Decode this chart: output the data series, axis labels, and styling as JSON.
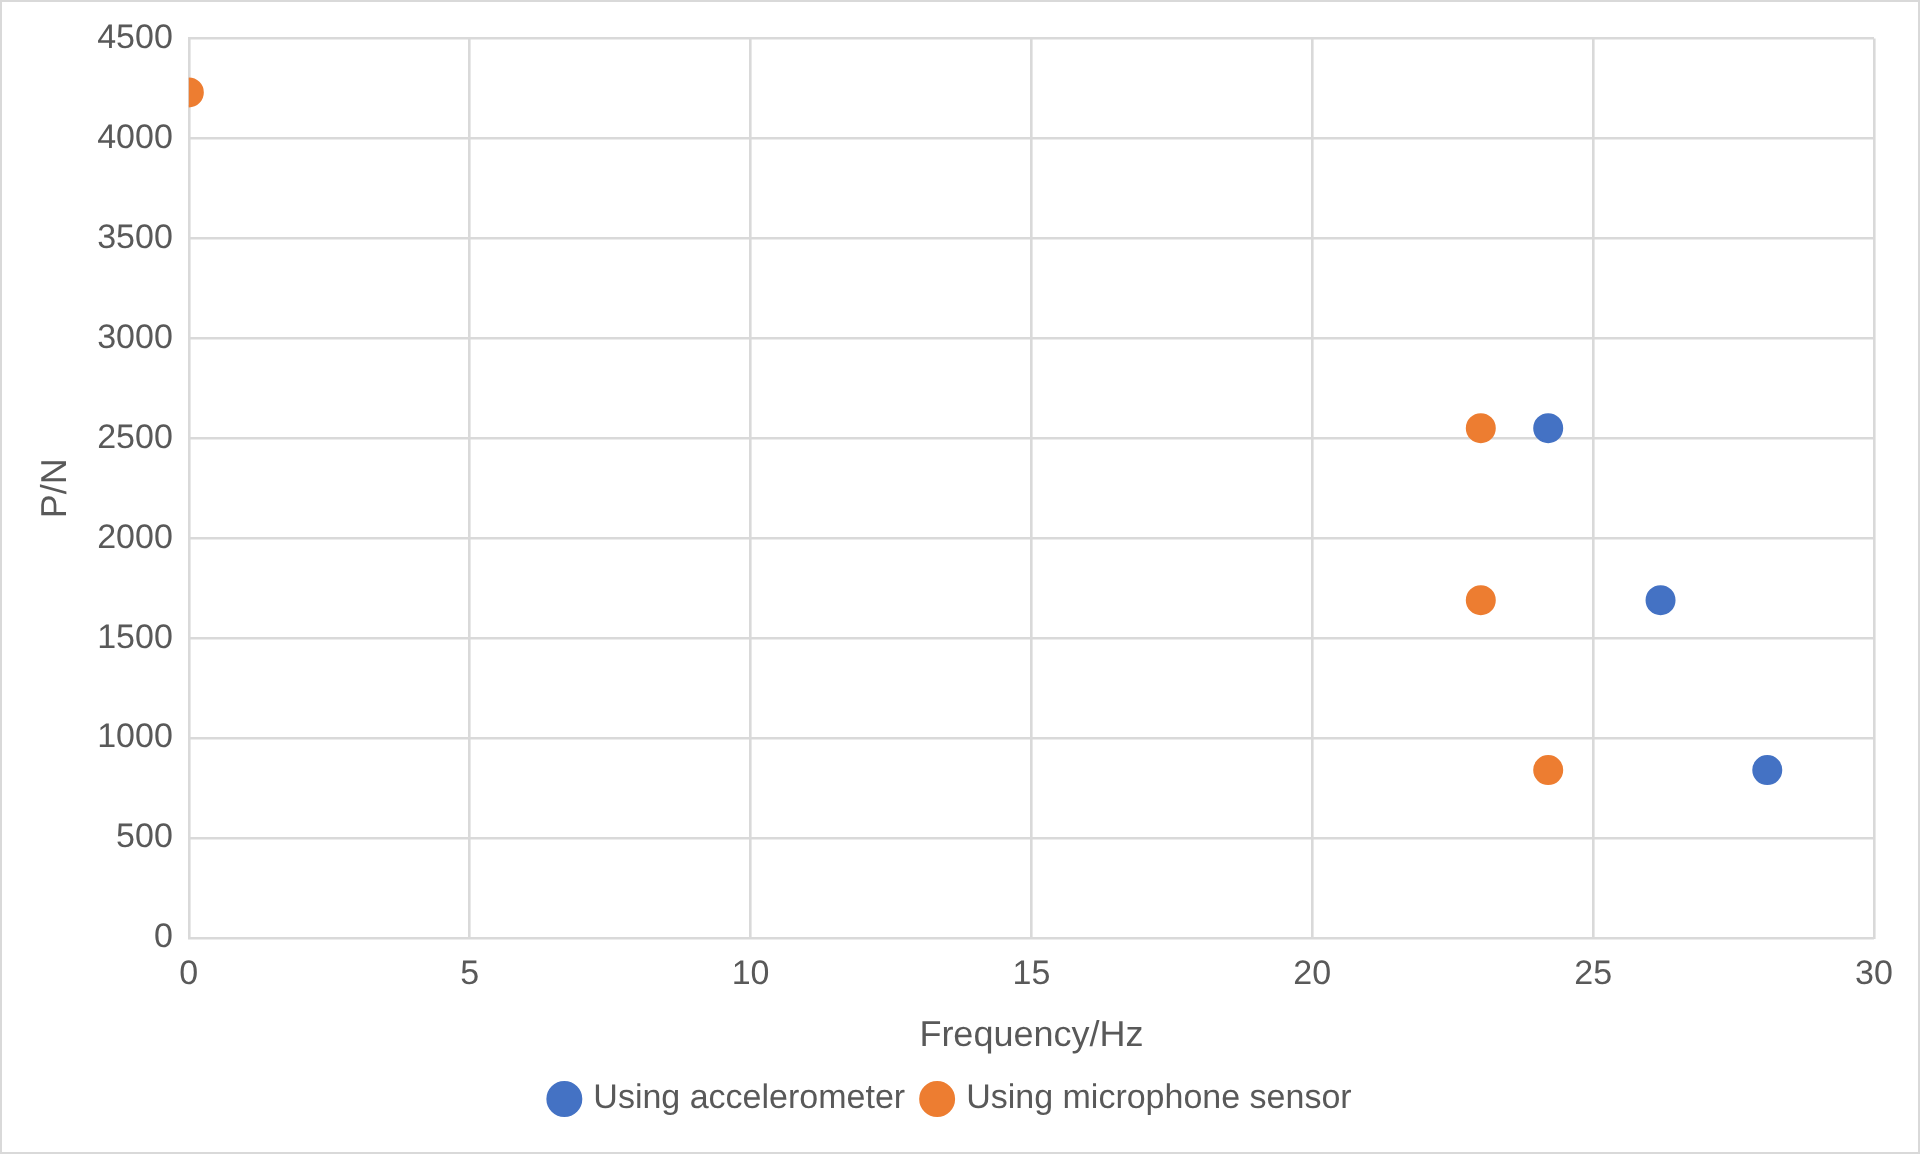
{
  "chart_data": {
    "type": "scatter",
    "xlabel": "Frequency/Hz",
    "ylabel": "P/N",
    "xlim": [
      0,
      30
    ],
    "xticks": [
      0,
      5,
      10,
      15,
      20,
      25,
      30
    ],
    "ylim": [
      0,
      4500
    ],
    "yticks": [
      0,
      500,
      1000,
      1500,
      2000,
      2500,
      3000,
      3500,
      4000,
      4500
    ],
    "grid": true,
    "legend": "bottom",
    "marker": "circle",
    "series": [
      {
        "name": "Using accelerometer",
        "color": "#4472c4",
        "x": [
          24.2,
          26.2,
          28.1
        ],
        "values": [
          2550,
          1690,
          840
        ]
      },
      {
        "name": "Using microphone sensor",
        "color": "#ed7d31",
        "x": [
          0,
          23.0,
          23.0,
          24.2
        ],
        "values": [
          4230,
          2550,
          1690,
          840
        ]
      }
    ]
  }
}
